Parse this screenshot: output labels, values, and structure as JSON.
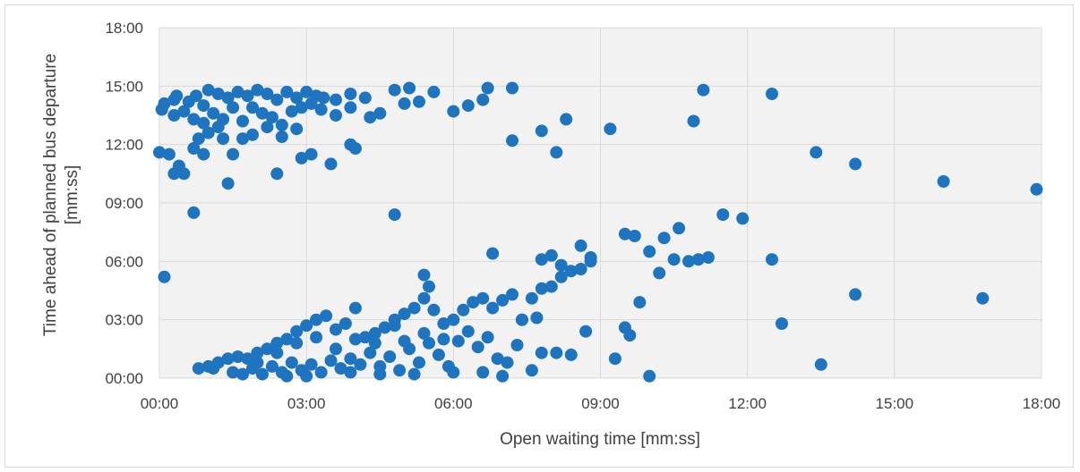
{
  "chart_data": {
    "type": "scatter",
    "xlabel": "Open waiting time [mm:ss]",
    "ylabel": "Time ahead of planned bus departure [mm:ss]",
    "xlim": [
      0,
      18
    ],
    "ylim": [
      0,
      18
    ],
    "x_ticks": [
      "00:00",
      "03:00",
      "06:00",
      "09:00",
      "12:00",
      "15:00",
      "18:00"
    ],
    "y_ticks": [
      "00:00",
      "03:00",
      "06:00",
      "09:00",
      "12:00",
      "15:00",
      "18:00"
    ],
    "grid": true,
    "legend": "none",
    "marker_color": "#1f74bf",
    "plot_background": "#f2f2f2",
    "grid_color": "#d9d9d9",
    "units": "minutes",
    "series": [
      {
        "points": [
          [
            0.05,
            13.8
          ],
          [
            0.1,
            14.1
          ],
          [
            0.3,
            14.3
          ],
          [
            0.35,
            14.5
          ],
          [
            0.6,
            14.2
          ],
          [
            0.75,
            14.5
          ],
          [
            0.9,
            14.0
          ],
          [
            1.0,
            14.8
          ],
          [
            1.2,
            14.6
          ],
          [
            1.4,
            14.4
          ],
          [
            1.6,
            14.7
          ],
          [
            1.8,
            14.5
          ],
          [
            2.0,
            14.8
          ],
          [
            2.2,
            14.6
          ],
          [
            2.4,
            14.3
          ],
          [
            2.6,
            14.7
          ],
          [
            2.8,
            14.4
          ],
          [
            3.0,
            14.7
          ],
          [
            3.2,
            14.5
          ],
          [
            3.35,
            14.4
          ],
          [
            3.6,
            14.3
          ],
          [
            3.9,
            14.6
          ],
          [
            4.2,
            14.4
          ],
          [
            4.8,
            14.8
          ],
          [
            5.1,
            14.9
          ],
          [
            5.6,
            14.7
          ],
          [
            6.7,
            14.9
          ],
          [
            7.2,
            14.9
          ],
          [
            0.3,
            13.5
          ],
          [
            0.5,
            13.7
          ],
          [
            0.7,
            13.3
          ],
          [
            0.9,
            13.1
          ],
          [
            1.1,
            13.6
          ],
          [
            1.3,
            13.3
          ],
          [
            1.5,
            13.9
          ],
          [
            1.7,
            13.2
          ],
          [
            1.9,
            13.9
          ],
          [
            2.1,
            13.6
          ],
          [
            2.3,
            13.4
          ],
          [
            2.5,
            13.0
          ],
          [
            2.7,
            13.7
          ],
          [
            2.9,
            13.9
          ],
          [
            3.1,
            14.1
          ],
          [
            3.3,
            13.8
          ],
          [
            3.6,
            13.5
          ],
          [
            3.9,
            13.9
          ],
          [
            4.3,
            13.4
          ],
          [
            4.5,
            13.6
          ],
          [
            5.0,
            14.1
          ],
          [
            5.3,
            14.2
          ],
          [
            6.0,
            13.7
          ],
          [
            6.3,
            14.0
          ],
          [
            6.6,
            14.3
          ],
          [
            0.0,
            11.6
          ],
          [
            0.2,
            11.5
          ],
          [
            0.4,
            10.9
          ],
          [
            0.7,
            11.8
          ],
          [
            0.8,
            12.3
          ],
          [
            0.9,
            11.5
          ],
          [
            1.0,
            12.6
          ],
          [
            1.2,
            12.9
          ],
          [
            1.3,
            12.3
          ],
          [
            1.5,
            11.5
          ],
          [
            1.7,
            12.3
          ],
          [
            1.9,
            12.5
          ],
          [
            2.2,
            12.9
          ],
          [
            2.5,
            12.4
          ],
          [
            2.8,
            12.8
          ],
          [
            2.9,
            11.3
          ],
          [
            3.1,
            11.5
          ],
          [
            3.5,
            11.0
          ],
          [
            3.9,
            12.0
          ],
          [
            4.0,
            11.8
          ],
          [
            0.3,
            10.5
          ],
          [
            0.5,
            10.5
          ],
          [
            1.4,
            10.0
          ],
          [
            2.4,
            10.5
          ],
          [
            0.7,
            8.5
          ],
          [
            4.8,
            8.4
          ],
          [
            0.1,
            5.2
          ],
          [
            7.2,
            12.2
          ],
          [
            7.8,
            12.7
          ],
          [
            8.1,
            11.6
          ],
          [
            8.3,
            13.3
          ],
          [
            9.2,
            12.8
          ],
          [
            10.9,
            13.2
          ],
          [
            11.1,
            14.8
          ],
          [
            12.5,
            14.6
          ],
          [
            13.4,
            11.6
          ],
          [
            14.2,
            11.0
          ],
          [
            16.0,
            10.1
          ],
          [
            17.9,
            9.7
          ],
          [
            0.8,
            0.5
          ],
          [
            1.0,
            0.6
          ],
          [
            1.2,
            0.8
          ],
          [
            1.4,
            1.0
          ],
          [
            1.6,
            1.1
          ],
          [
            1.8,
            1.0
          ],
          [
            2.0,
            1.3
          ],
          [
            2.2,
            1.5
          ],
          [
            2.4,
            1.8
          ],
          [
            2.6,
            2.0
          ],
          [
            2.8,
            2.4
          ],
          [
            3.0,
            2.7
          ],
          [
            3.2,
            3.0
          ],
          [
            3.4,
            3.2
          ],
          [
            3.6,
            2.5
          ],
          [
            3.8,
            2.8
          ],
          [
            4.0,
            3.6
          ],
          [
            4.2,
            2.1
          ],
          [
            4.4,
            2.3
          ],
          [
            4.6,
            2.6
          ],
          [
            4.8,
            3.0
          ],
          [
            5.0,
            3.3
          ],
          [
            5.2,
            3.6
          ],
          [
            5.4,
            4.1
          ],
          [
            5.5,
            4.7
          ],
          [
            5.6,
            3.5
          ],
          [
            5.8,
            2.8
          ],
          [
            6.0,
            3.0
          ],
          [
            6.2,
            3.5
          ],
          [
            6.4,
            3.9
          ],
          [
            6.6,
            4.1
          ],
          [
            6.8,
            3.6
          ],
          [
            7.0,
            4.0
          ],
          [
            7.2,
            4.3
          ],
          [
            7.4,
            3.0
          ],
          [
            7.6,
            4.1
          ],
          [
            7.8,
            4.6
          ],
          [
            8.0,
            4.7
          ],
          [
            8.2,
            5.2
          ],
          [
            8.4,
            5.5
          ],
          [
            8.6,
            5.6
          ],
          [
            8.8,
            6.0
          ],
          [
            1.5,
            0.3
          ],
          [
            1.7,
            0.2
          ],
          [
            1.9,
            0.5
          ],
          [
            2.1,
            0.2
          ],
          [
            2.3,
            0.6
          ],
          [
            2.5,
            0.3
          ],
          [
            2.7,
            0.8
          ],
          [
            2.9,
            0.4
          ],
          [
            3.1,
            0.7
          ],
          [
            3.3,
            0.3
          ],
          [
            3.5,
            0.9
          ],
          [
            3.7,
            0.5
          ],
          [
            3.9,
            1.0
          ],
          [
            4.1,
            0.7
          ],
          [
            4.3,
            1.3
          ],
          [
            4.5,
            0.6
          ],
          [
            4.7,
            1.1
          ],
          [
            4.9,
            0.4
          ],
          [
            5.1,
            1.5
          ],
          [
            5.3,
            0.8
          ],
          [
            5.5,
            1.8
          ],
          [
            5.7,
            1.2
          ],
          [
            5.9,
            0.6
          ],
          [
            6.1,
            1.9
          ],
          [
            6.3,
            2.4
          ],
          [
            6.5,
            1.6
          ],
          [
            6.7,
            2.1
          ],
          [
            6.9,
            1.0
          ],
          [
            7.1,
            0.8
          ],
          [
            7.3,
            1.7
          ],
          [
            7.6,
            0.4
          ],
          [
            7.8,
            1.3
          ],
          [
            8.1,
            1.3
          ],
          [
            8.4,
            1.2
          ],
          [
            8.7,
            2.4
          ],
          [
            9.3,
            1.0
          ],
          [
            9.5,
            2.6
          ],
          [
            1.1,
            0.5
          ],
          [
            2.0,
            0.8
          ],
          [
            2.4,
            1.3
          ],
          [
            2.8,
            1.8
          ],
          [
            3.2,
            2.1
          ],
          [
            3.6,
            1.5
          ],
          [
            4.0,
            2.0
          ],
          [
            4.4,
            1.8
          ],
          [
            4.8,
            2.7
          ],
          [
            5.0,
            1.9
          ],
          [
            5.4,
            2.3
          ],
          [
            5.8,
            2.0
          ],
          [
            6.0,
            0.3
          ],
          [
            6.6,
            0.3
          ],
          [
            7.0,
            0.1
          ],
          [
            7.4,
            3.0
          ],
          [
            7.8,
            6.1
          ],
          [
            8.0,
            6.3
          ],
          [
            8.2,
            5.8
          ],
          [
            8.6,
            6.8
          ],
          [
            8.8,
            6.2
          ],
          [
            9.5,
            7.4
          ],
          [
            9.7,
            7.3
          ],
          [
            10.0,
            6.5
          ],
          [
            10.3,
            7.2
          ],
          [
            10.6,
            7.7
          ],
          [
            10.8,
            6.0
          ],
          [
            11.0,
            6.1
          ],
          [
            11.2,
            6.2
          ],
          [
            11.5,
            8.4
          ],
          [
            11.9,
            8.2
          ],
          [
            12.5,
            6.1
          ],
          [
            9.6,
            2.2
          ],
          [
            9.8,
            3.9
          ],
          [
            10.0,
            0.1
          ],
          [
            10.2,
            5.4
          ],
          [
            10.5,
            6.1
          ],
          [
            12.7,
            2.8
          ],
          [
            13.5,
            0.7
          ],
          [
            14.2,
            4.3
          ],
          [
            16.8,
            4.1
          ],
          [
            7.7,
            3.1
          ],
          [
            6.8,
            6.4
          ],
          [
            5.4,
            5.3
          ],
          [
            3.9,
            0.3
          ],
          [
            2.6,
            0.1
          ],
          [
            3.0,
            0.1
          ],
          [
            4.5,
            0.2
          ],
          [
            5.2,
            0.2
          ]
        ]
      }
    ]
  }
}
